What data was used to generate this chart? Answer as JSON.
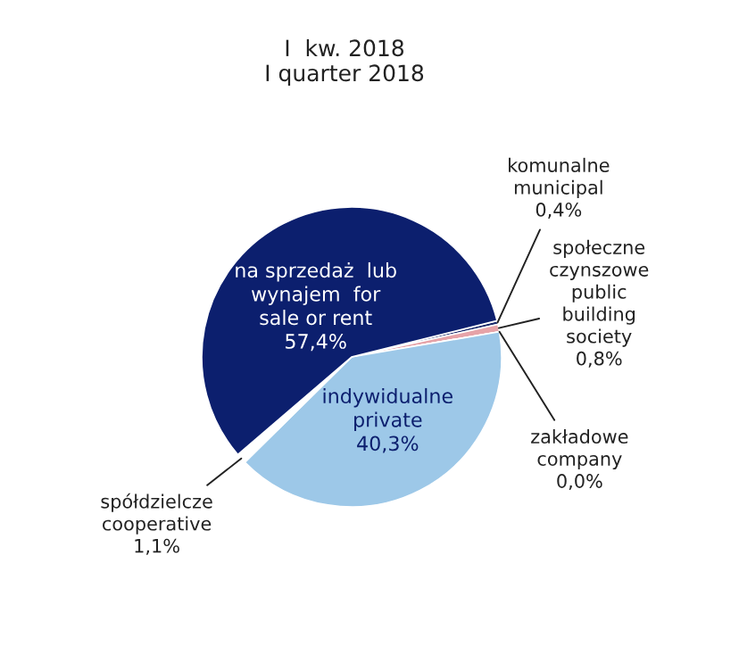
{
  "chart_data": {
    "type": "pie",
    "title": "I  kw. 2018\nI quarter 2018",
    "categories": [
      "komunalne\nmunicipal",
      "społeczne\nczynszowe\npublic\nbuilding\nsociety",
      "zakładowe\ncompany",
      "indywidualne\nprivate",
      "spółdzielcze\ncooperative",
      "na sprzedaż  lub\nwynajem  for\nsale or rent"
    ],
    "values": [
      0.4,
      0.8,
      0.0,
      40.3,
      1.1,
      57.4
    ],
    "value_labels": [
      "0,4%",
      "0,8%",
      "0,0%",
      "40,3%",
      "1,1%",
      "57,4%"
    ],
    "colors": [
      "#1a2a6c",
      "#e6a3a8",
      "#7f7f7f",
      "#9dc8e8",
      "#ffffff",
      "#0c1f6e"
    ]
  }
}
